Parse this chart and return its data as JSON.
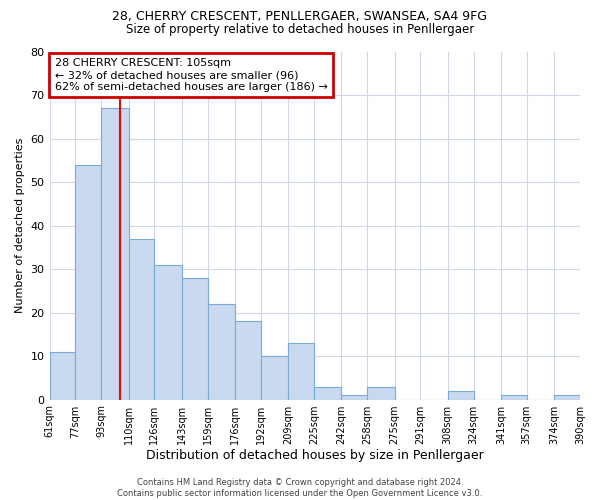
{
  "title1": "28, CHERRY CRESCENT, PENLLERGAER, SWANSEA, SA4 9FG",
  "title2": "Size of property relative to detached houses in Penllergaer",
  "xlabel": "Distribution of detached houses by size in Penllergaer",
  "ylabel": "Number of detached properties",
  "bin_edges": [
    61,
    77,
    93,
    110,
    126,
    143,
    159,
    176,
    192,
    209,
    225,
    242,
    258,
    275,
    291,
    308,
    324,
    341,
    357,
    374,
    390
  ],
  "bar_heights": [
    11,
    54,
    67,
    37,
    31,
    28,
    22,
    18,
    10,
    13,
    3,
    1,
    3,
    0,
    0,
    2,
    0,
    1,
    0,
    1
  ],
  "bar_color": "#c8d9f0",
  "bar_edge_color": "#7aacd6",
  "red_line_x": 105,
  "annotation_title": "28 CHERRY CRESCENT: 105sqm",
  "annotation_line1": "← 32% of detached houses are smaller (96)",
  "annotation_line2": "62% of semi-detached houses are larger (186) →",
  "annotation_box_color": "#ffffff",
  "annotation_box_edge": "#cc0000",
  "tick_labels": [
    "61sqm",
    "77sqm",
    "93sqm",
    "110sqm",
    "126sqm",
    "143sqm",
    "159sqm",
    "176sqm",
    "192sqm",
    "209sqm",
    "225sqm",
    "242sqm",
    "258sqm",
    "275sqm",
    "291sqm",
    "308sqm",
    "324sqm",
    "341sqm",
    "357sqm",
    "374sqm",
    "390sqm"
  ],
  "footer1": "Contains HM Land Registry data © Crown copyright and database right 2024.",
  "footer2": "Contains public sector information licensed under the Open Government Licence v3.0.",
  "ylim": [
    0,
    80
  ],
  "yticks": [
    0,
    10,
    20,
    30,
    40,
    50,
    60,
    70,
    80
  ],
  "bg_color": "#ffffff",
  "grid_color": "#d0d8e8"
}
